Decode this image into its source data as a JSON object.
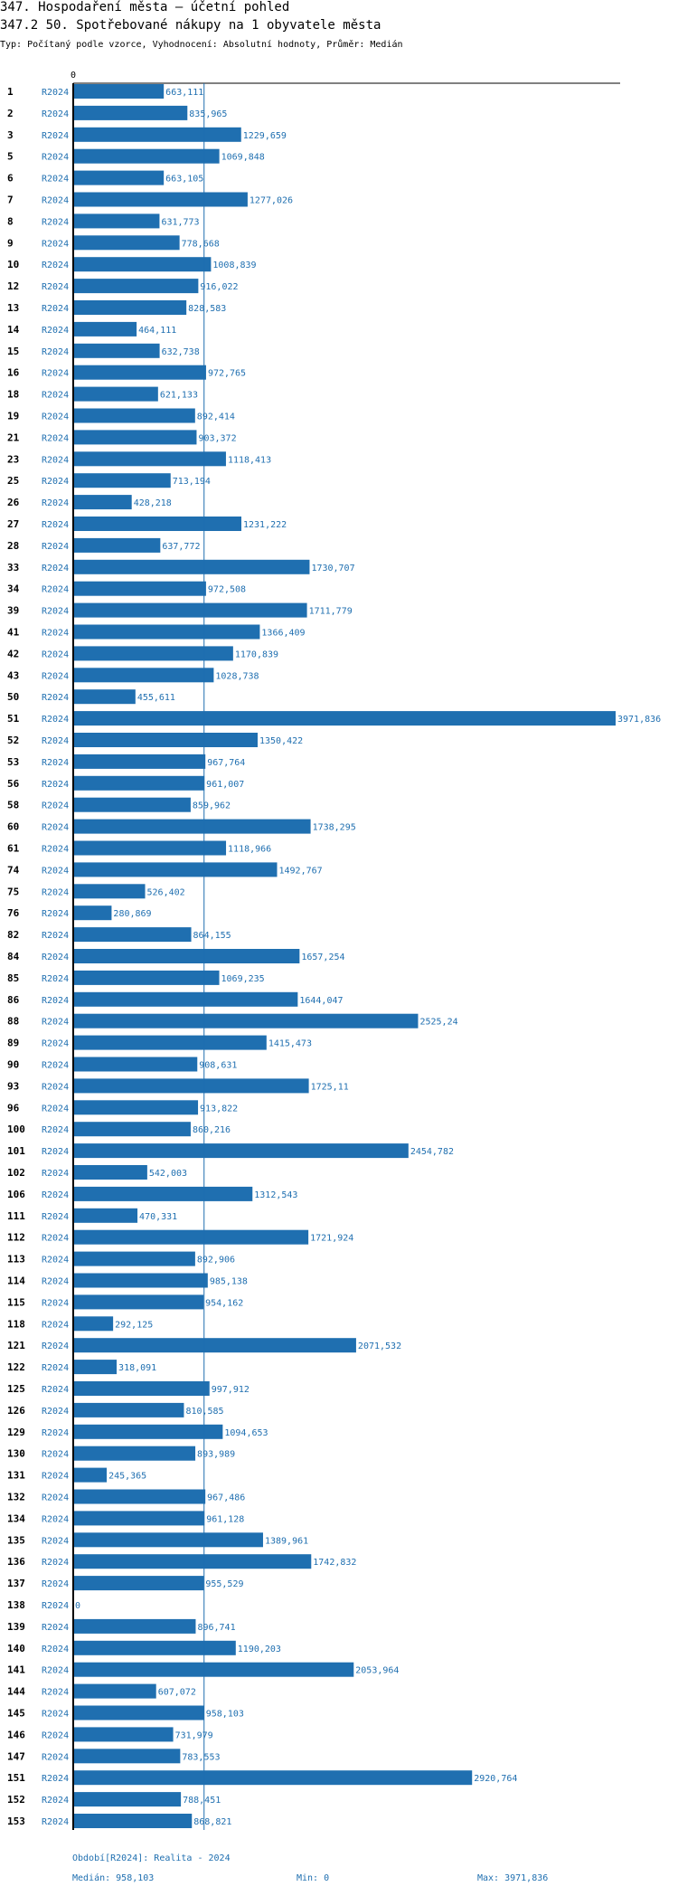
{
  "header": {
    "title": "347. Hospodaření města – účetní pohled",
    "subtitle": "347.2 50. Spotřebované nákupy na 1 obyvatele města",
    "type_line": "Typ: Počítaný podle vzorce, Vyhodnocení: Absolutní hodnoty, Průměr: Medián"
  },
  "colors": {
    "bar": "#1f6fb0",
    "label": "#1f6fb0",
    "axis": "#000000",
    "median_line": "#1f6fb0"
  },
  "chart_data": {
    "type": "bar",
    "orientation": "horizontal",
    "axis_zero_label": "0",
    "xlim": [
      0,
      3971.836
    ],
    "median": 958.103,
    "series_label": "R2024",
    "rows": [
      {
        "id": "1",
        "value": 663.111,
        "label": "663,111"
      },
      {
        "id": "2",
        "value": 835.965,
        "label": "835,965"
      },
      {
        "id": "3",
        "value": 1229.659,
        "label": "1229,659"
      },
      {
        "id": "5",
        "value": 1069.848,
        "label": "1069,848"
      },
      {
        "id": "6",
        "value": 663.105,
        "label": "663,105"
      },
      {
        "id": "7",
        "value": 1277.026,
        "label": "1277,026"
      },
      {
        "id": "8",
        "value": 631.773,
        "label": "631,773"
      },
      {
        "id": "9",
        "value": 778.668,
        "label": "778,668"
      },
      {
        "id": "10",
        "value": 1008.839,
        "label": "1008,839"
      },
      {
        "id": "12",
        "value": 916.022,
        "label": "916,022"
      },
      {
        "id": "13",
        "value": 828.583,
        "label": "828,583"
      },
      {
        "id": "14",
        "value": 464.111,
        "label": "464,111"
      },
      {
        "id": "15",
        "value": 632.738,
        "label": "632,738"
      },
      {
        "id": "16",
        "value": 972.765,
        "label": "972,765"
      },
      {
        "id": "18",
        "value": 621.133,
        "label": "621,133"
      },
      {
        "id": "19",
        "value": 892.414,
        "label": "892,414"
      },
      {
        "id": "21",
        "value": 903.372,
        "label": "903,372"
      },
      {
        "id": "23",
        "value": 1118.413,
        "label": "1118,413"
      },
      {
        "id": "25",
        "value": 713.194,
        "label": "713,194"
      },
      {
        "id": "26",
        "value": 428.218,
        "label": "428,218"
      },
      {
        "id": "27",
        "value": 1231.222,
        "label": "1231,222"
      },
      {
        "id": "28",
        "value": 637.772,
        "label": "637,772"
      },
      {
        "id": "33",
        "value": 1730.707,
        "label": "1730,707"
      },
      {
        "id": "34",
        "value": 972.508,
        "label": "972,508"
      },
      {
        "id": "39",
        "value": 1711.779,
        "label": "1711,779"
      },
      {
        "id": "41",
        "value": 1366.409,
        "label": "1366,409"
      },
      {
        "id": "42",
        "value": 1170.839,
        "label": "1170,839"
      },
      {
        "id": "43",
        "value": 1028.738,
        "label": "1028,738"
      },
      {
        "id": "50",
        "value": 455.611,
        "label": "455,611"
      },
      {
        "id": "51",
        "value": 3971.836,
        "label": "3971,836"
      },
      {
        "id": "52",
        "value": 1350.422,
        "label": "1350,422"
      },
      {
        "id": "53",
        "value": 967.764,
        "label": "967,764"
      },
      {
        "id": "56",
        "value": 961.007,
        "label": "961,007"
      },
      {
        "id": "58",
        "value": 859.962,
        "label": "859,962"
      },
      {
        "id": "60",
        "value": 1738.295,
        "label": "1738,295"
      },
      {
        "id": "61",
        "value": 1118.966,
        "label": "1118,966"
      },
      {
        "id": "74",
        "value": 1492.767,
        "label": "1492,767"
      },
      {
        "id": "75",
        "value": 526.402,
        "label": "526,402"
      },
      {
        "id": "76",
        "value": 280.869,
        "label": "280,869"
      },
      {
        "id": "82",
        "value": 864.155,
        "label": "864,155"
      },
      {
        "id": "84",
        "value": 1657.254,
        "label": "1657,254"
      },
      {
        "id": "85",
        "value": 1069.235,
        "label": "1069,235"
      },
      {
        "id": "86",
        "value": 1644.047,
        "label": "1644,047"
      },
      {
        "id": "88",
        "value": 2525.24,
        "label": "2525,24"
      },
      {
        "id": "89",
        "value": 1415.473,
        "label": "1415,473"
      },
      {
        "id": "90",
        "value": 908.631,
        "label": "908,631"
      },
      {
        "id": "93",
        "value": 1725.11,
        "label": "1725,11"
      },
      {
        "id": "96",
        "value": 913.822,
        "label": "913,822"
      },
      {
        "id": "100",
        "value": 860.216,
        "label": "860,216"
      },
      {
        "id": "101",
        "value": 2454.782,
        "label": "2454,782"
      },
      {
        "id": "102",
        "value": 542.003,
        "label": "542,003"
      },
      {
        "id": "106",
        "value": 1312.543,
        "label": "1312,543"
      },
      {
        "id": "111",
        "value": 470.331,
        "label": "470,331"
      },
      {
        "id": "112",
        "value": 1721.924,
        "label": "1721,924"
      },
      {
        "id": "113",
        "value": 892.906,
        "label": "892,906"
      },
      {
        "id": "114",
        "value": 985.138,
        "label": "985,138"
      },
      {
        "id": "115",
        "value": 954.162,
        "label": "954,162"
      },
      {
        "id": "118",
        "value": 292.125,
        "label": "292,125"
      },
      {
        "id": "121",
        "value": 2071.532,
        "label": "2071,532"
      },
      {
        "id": "122",
        "value": 318.091,
        "label": "318,091"
      },
      {
        "id": "125",
        "value": 997.912,
        "label": "997,912"
      },
      {
        "id": "126",
        "value": 810.585,
        "label": "810,585"
      },
      {
        "id": "129",
        "value": 1094.653,
        "label": "1094,653"
      },
      {
        "id": "130",
        "value": 893.989,
        "label": "893,989"
      },
      {
        "id": "131",
        "value": 245.365,
        "label": "245,365"
      },
      {
        "id": "132",
        "value": 967.486,
        "label": "967,486"
      },
      {
        "id": "134",
        "value": 961.128,
        "label": "961,128"
      },
      {
        "id": "135",
        "value": 1389.961,
        "label": "1389,961"
      },
      {
        "id": "136",
        "value": 1742.832,
        "label": "1742,832"
      },
      {
        "id": "137",
        "value": 955.529,
        "label": "955,529"
      },
      {
        "id": "138",
        "value": 0,
        "label": "0"
      },
      {
        "id": "139",
        "value": 896.741,
        "label": "896,741"
      },
      {
        "id": "140",
        "value": 1190.203,
        "label": "1190,203"
      },
      {
        "id": "141",
        "value": 2053.964,
        "label": "2053,964"
      },
      {
        "id": "144",
        "value": 607.072,
        "label": "607,072"
      },
      {
        "id": "145",
        "value": 958.103,
        "label": "958,103"
      },
      {
        "id": "146",
        "value": 731.979,
        "label": "731,979"
      },
      {
        "id": "147",
        "value": 783.553,
        "label": "783,553"
      },
      {
        "id": "151",
        "value": 2920.764,
        "label": "2920,764"
      },
      {
        "id": "152",
        "value": 788.451,
        "label": "788,451"
      },
      {
        "id": "153",
        "value": 868.821,
        "label": "868,821"
      }
    ]
  },
  "footer": {
    "period": "Období[R2024]: Realita - 2024",
    "median": "Medián: 958,103",
    "min": "Min: 0",
    "max": "Max: 3971,836"
  }
}
